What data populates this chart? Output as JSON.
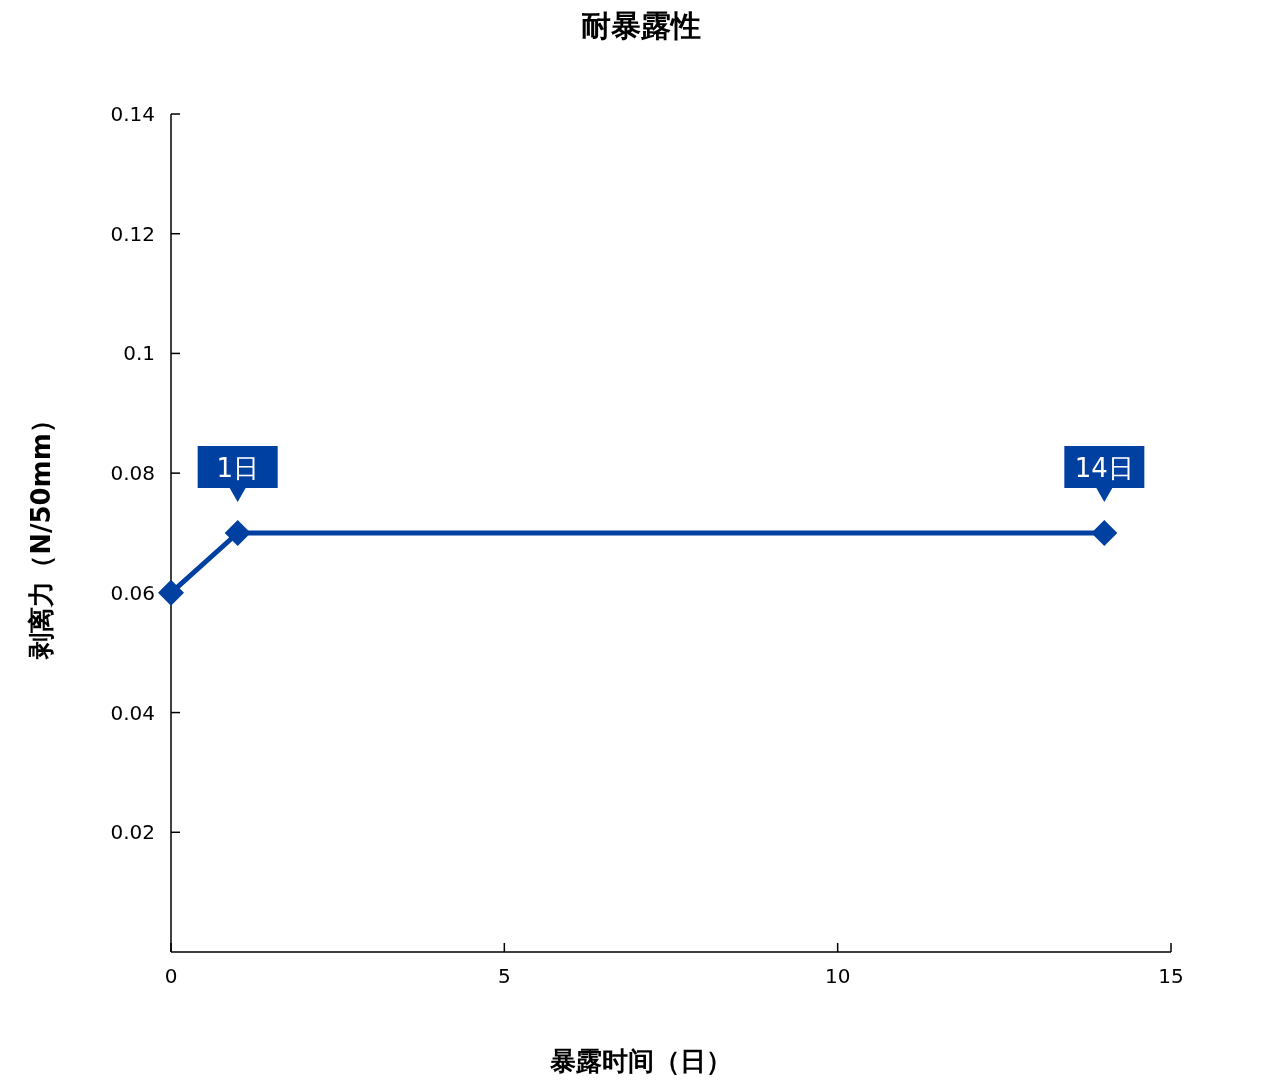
{
  "chart_data": {
    "type": "line",
    "title": "耐暴露性",
    "xlabel": "暴露时间（日）",
    "ylabel": "剥离力（N/50mm）",
    "x": [
      0,
      1,
      14
    ],
    "series": [
      {
        "color": "#0040a0",
        "values": [
          0.06,
          0.07,
          0.07
        ]
      }
    ],
    "xlim": [
      0,
      15
    ],
    "xticks": [
      0,
      5,
      10,
      15
    ],
    "ylim": [
      0,
      0.14
    ],
    "yticks": [
      0.02,
      0.04,
      0.06,
      0.08,
      0.1,
      0.12,
      0.14
    ],
    "marker": "diamond",
    "line_style": "solid",
    "grid": false,
    "annotations": [
      {
        "text": "1日",
        "x": 1,
        "y": 0.07
      },
      {
        "text": "14日",
        "x": 14,
        "y": 0.07
      }
    ]
  }
}
